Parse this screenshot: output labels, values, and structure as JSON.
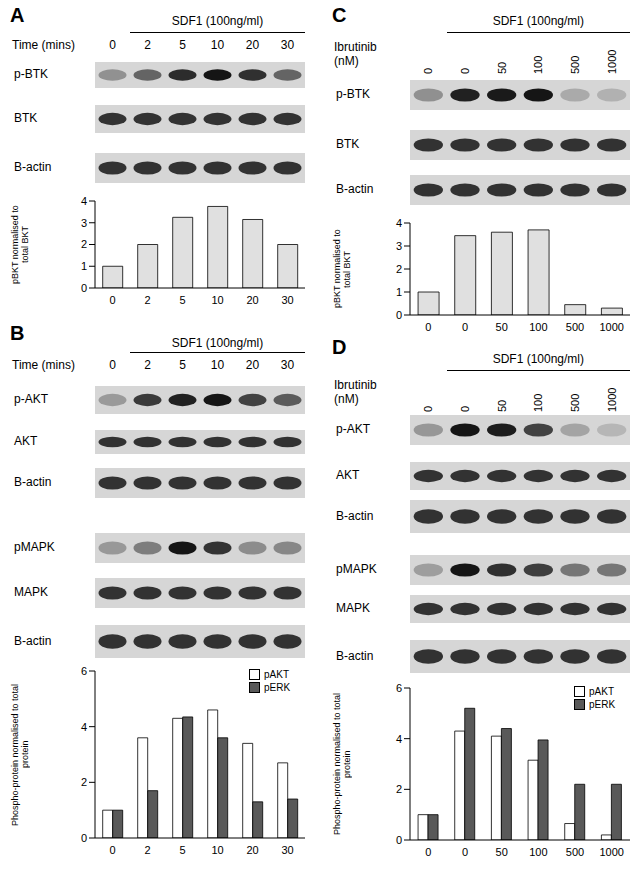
{
  "panels": [
    {
      "letter": "A",
      "treatment": "SDF1 (100ng/ml)",
      "condition_title": "Time (mins)",
      "conditions": [
        "0",
        "2",
        "5",
        "10",
        "20",
        "30"
      ],
      "blots": [
        "p-BTK",
        "BTK",
        "B-actin"
      ]
    },
    {
      "letter": "B",
      "treatment": "SDF1 (100ng/ml)",
      "condition_title": "Time (mins)",
      "conditions": [
        "0",
        "2",
        "5",
        "10",
        "20",
        "30"
      ],
      "blots": [
        "p-AKT",
        "AKT",
        "B-actin",
        "pMAPK",
        "MAPK",
        "B-actin"
      ]
    },
    {
      "letter": "C",
      "treatment": "SDF1 (100ng/ml)",
      "condition_title": "Ibrutinib (nM)",
      "conditions": [
        "0",
        "0",
        "50",
        "100",
        "500",
        "1000"
      ],
      "blots": [
        "p-BTK",
        "BTK",
        "B-actin"
      ]
    },
    {
      "letter": "D",
      "treatment": "SDF1 (100ng/ml)",
      "condition_title": "Ibrutinib (nM)",
      "conditions": [
        "0",
        "0",
        "50",
        "100",
        "500",
        "1000"
      ],
      "blots": [
        "p-AKT",
        "AKT",
        "B-actin",
        "pMAPK",
        "MAPK",
        "B-actin"
      ]
    }
  ],
  "chart_data": [
    {
      "type": "bar",
      "ylabel": "pBKT normalised to total BKT",
      "categories": [
        "0",
        "2",
        "5",
        "10",
        "20",
        "30"
      ],
      "values": [
        1,
        2.0,
        3.25,
        3.75,
        3.15,
        2.0
      ],
      "color": "#e0e0e0",
      "ylim": [
        0,
        4
      ],
      "yticks": [
        0,
        1,
        2,
        3,
        4
      ],
      "grid": false
    },
    {
      "type": "bar",
      "ylabel": "Phospho-protein normalised to total protein",
      "categories": [
        "0",
        "2",
        "5",
        "10",
        "20",
        "30"
      ],
      "series": [
        {
          "name": "pAKT",
          "color": "#ffffff",
          "values": [
            1,
            3.6,
            4.3,
            4.6,
            3.4,
            2.7
          ]
        },
        {
          "name": "pERK",
          "color": "#595959",
          "values": [
            1,
            1.7,
            4.35,
            3.6,
            1.3,
            1.4
          ]
        }
      ],
      "ylim": [
        0,
        6
      ],
      "yticks": [
        0,
        2,
        4,
        6
      ],
      "grid": false,
      "legend": "upper right"
    },
    {
      "type": "bar",
      "ylabel": "pBKT normalised to total BKT",
      "categories": [
        "0",
        "0",
        "50",
        "100",
        "500",
        "1000"
      ],
      "values": [
        1,
        3.45,
        3.6,
        3.7,
        0.45,
        0.3
      ],
      "color": "#e0e0e0",
      "ylim": [
        0,
        4
      ],
      "yticks": [
        0,
        1,
        2,
        3,
        4
      ],
      "grid": false
    },
    {
      "type": "bar",
      "ylabel": "Phospho-protein normalised to total protein",
      "categories": [
        "0",
        "0",
        "50",
        "100",
        "500",
        "1000"
      ],
      "series": [
        {
          "name": "pAKT",
          "color": "#ffffff",
          "values": [
            1,
            4.3,
            4.1,
            3.15,
            0.65,
            0.2
          ]
        },
        {
          "name": "pERK",
          "color": "#595959",
          "values": [
            1,
            5.2,
            4.4,
            3.95,
            2.2,
            2.2
          ]
        }
      ],
      "ylim": [
        0,
        6
      ],
      "yticks": [
        0,
        2,
        4,
        6
      ],
      "grid": false,
      "legend": "upper right"
    }
  ]
}
